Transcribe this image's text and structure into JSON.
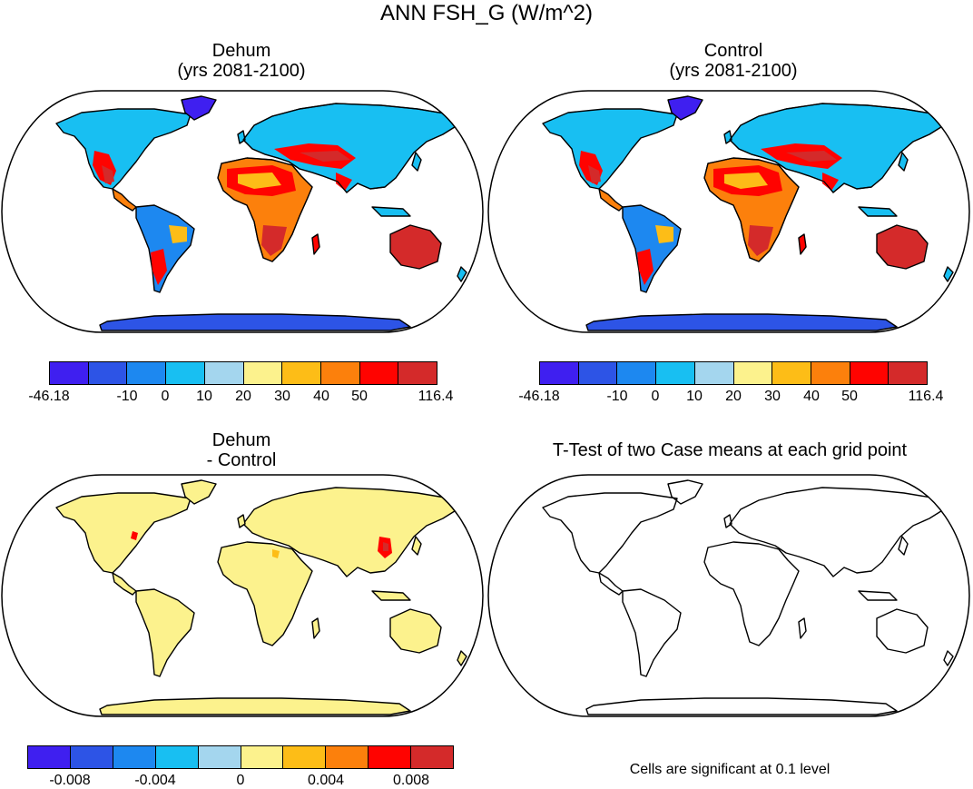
{
  "title": "ANN FSH_G (W/m^2)",
  "colors": {
    "palette": [
      "#3f1ff0",
      "#2d54e6",
      "#1d88f0",
      "#18bff2",
      "#a4d6ee",
      "#fcf28d",
      "#fdbd17",
      "#fc800c",
      "#ff0300",
      "#d42a2a"
    ]
  },
  "panels": {
    "dehum": {
      "title_line1": "Dehum",
      "title_line2": "(yrs 2081-2100)"
    },
    "control": {
      "title_line1": "Control",
      "title_line2": "(yrs 2081-2100)"
    },
    "diff": {
      "title_line1": "Dehum",
      "title_line2": "- Control"
    },
    "ttest": {
      "title": "T-Test of two Case means at each grid point",
      "note": "Cells are significant at 0.1 level"
    }
  },
  "colorbars": {
    "case": {
      "ticks": [
        "-46.18",
        "-10",
        "0",
        "10",
        "20",
        "30",
        "40",
        "50",
        "116.4"
      ]
    },
    "diff": {
      "ticks": [
        "-0.008",
        "-0.004",
        "0",
        "0.004",
        "0.008"
      ]
    }
  },
  "chart_data": {
    "type": "heatmap",
    "projection": "Robinson",
    "variable": "ANN FSH_G",
    "units": "W/m^2",
    "panels": [
      {
        "name": "Dehum",
        "period": "yrs 2081-2100",
        "levels": [
          -46.18,
          -10,
          0,
          10,
          20,
          30,
          40,
          50,
          116.4
        ]
      },
      {
        "name": "Control",
        "period": "yrs 2081-2100",
        "levels": [
          -46.18,
          -10,
          0,
          10,
          20,
          30,
          40,
          50,
          116.4
        ]
      },
      {
        "name": "Dehum - Control",
        "levels": [
          -0.008,
          -0.004,
          0,
          0.004,
          0.008
        ]
      },
      {
        "name": "T-Test of two Case means at each grid point",
        "significance_level": 0.1
      }
    ]
  }
}
